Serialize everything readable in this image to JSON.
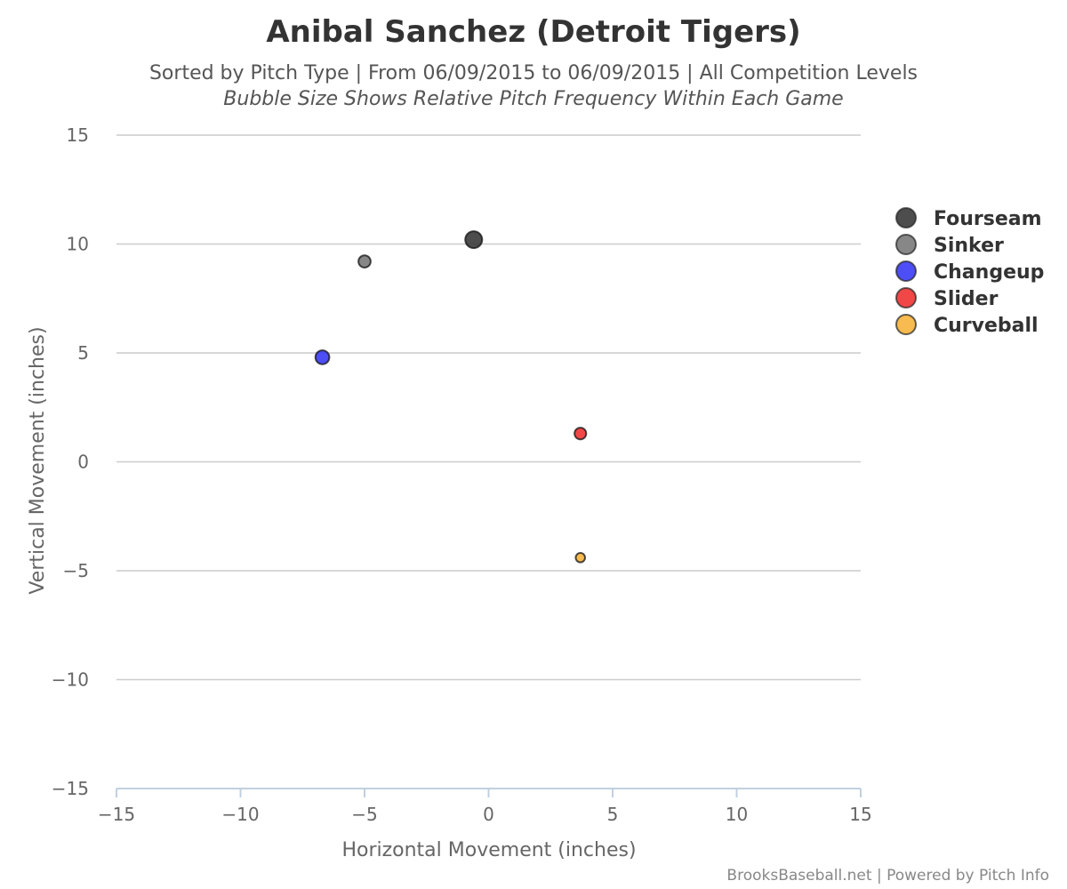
{
  "chart_data": {
    "type": "scatter",
    "title": "Anibal Sanchez (Detroit Tigers)",
    "subtitle": "Sorted by Pitch Type | From 06/09/2015 to 06/09/2015 | All Competition Levels",
    "subtitle2": "Bubble Size Shows Relative Pitch Frequency Within Each Game",
    "xlabel": "Horizontal Movement (inches)",
    "ylabel": "Vertical Movement (inches)",
    "xlim": [
      -15,
      15
    ],
    "ylim": [
      -15,
      15
    ],
    "x_ticks": [
      -15,
      -10,
      -5,
      0,
      5,
      10,
      15
    ],
    "y_ticks": [
      -15,
      -10,
      -5,
      0,
      5,
      10,
      15
    ],
    "x_tick_labels": [
      "−15",
      "−10",
      "−5",
      "0",
      "5",
      "10",
      "15"
    ],
    "y_tick_labels": [
      "−15",
      "−10",
      "−5",
      "0",
      "5",
      "10",
      "15"
    ],
    "grid": "horizontal",
    "legend_position": "right",
    "series": [
      {
        "name": "Fourseam",
        "color": "#3a3a3a",
        "x": -0.6,
        "y": 10.2,
        "relative_frequency": 1.0
      },
      {
        "name": "Sinker",
        "color": "#7a7a7a",
        "x": -5.0,
        "y": 9.2,
        "relative_frequency": 0.35
      },
      {
        "name": "Changeup",
        "color": "#3b3bf5",
        "x": -6.7,
        "y": 4.8,
        "relative_frequency": 0.55
      },
      {
        "name": "Slider",
        "color": "#f03333",
        "x": 3.7,
        "y": 1.3,
        "relative_frequency": 0.3
      },
      {
        "name": "Curveball",
        "color": "#f6b43c",
        "x": 3.7,
        "y": -4.4,
        "relative_frequency": 0.12
      }
    ]
  },
  "credit": "BrooksBaseball.net | Powered by Pitch Info"
}
